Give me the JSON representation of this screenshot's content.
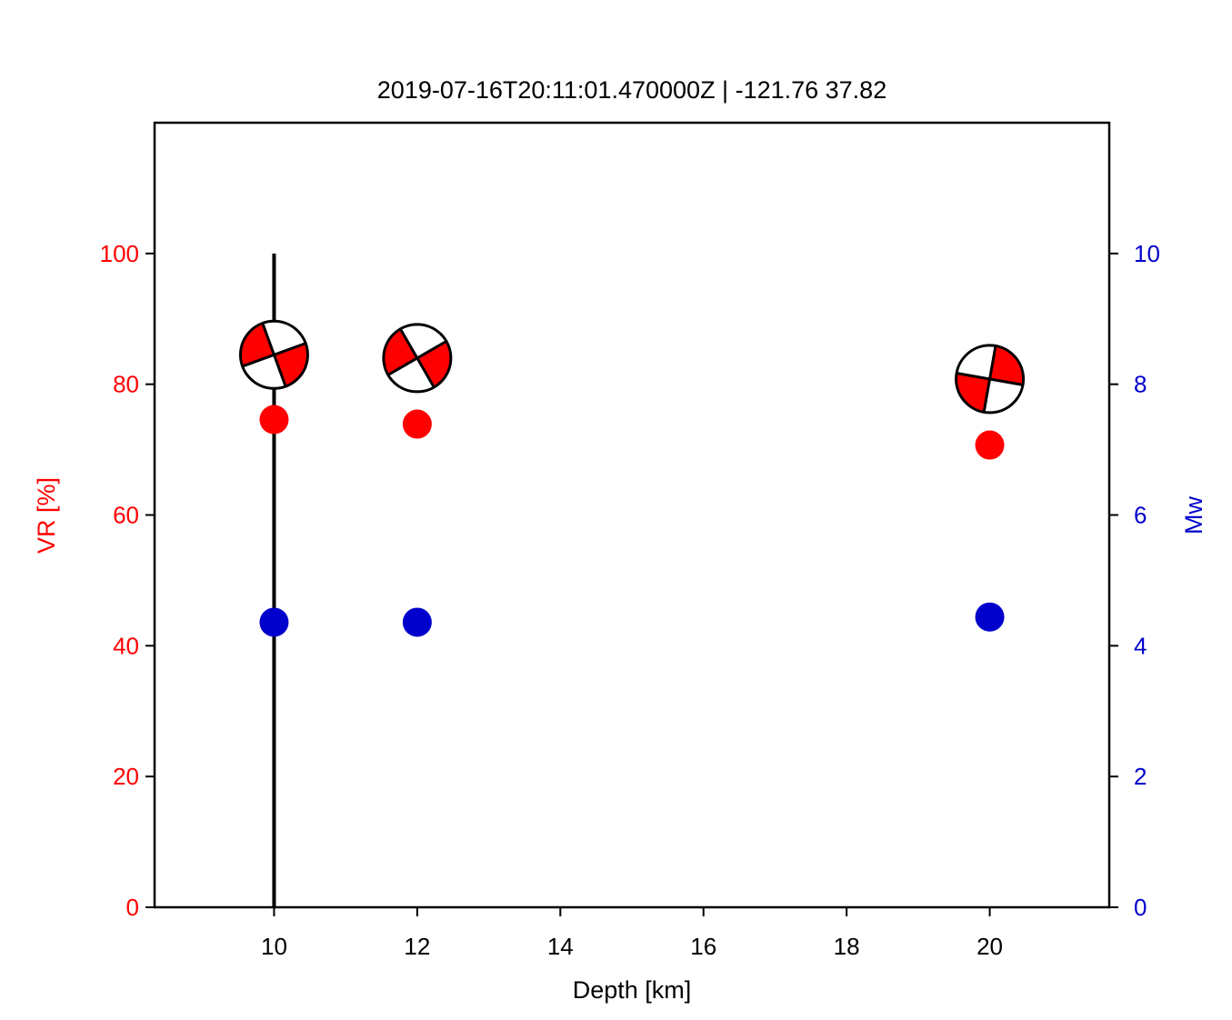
{
  "chart_data": {
    "type": "scatter",
    "title": "2019-07-16T20:11:01.470000Z | -121.76 37.82",
    "xlabel": "Depth [km]",
    "ylabel_left": "VR [%]",
    "ylabel_right": "Mw",
    "xlim": [
      8.33,
      21.67
    ],
    "ylim_left": [
      0,
      120
    ],
    "ylim_right": [
      0,
      12
    ],
    "x_ticks": [
      10,
      12,
      14,
      16,
      18,
      20
    ],
    "y_ticks_left": [
      0,
      20,
      40,
      60,
      80,
      100
    ],
    "y_ticks_right": [
      0,
      2,
      4,
      6,
      8,
      10
    ],
    "best_depth_line": {
      "x": 10,
      "y_from": 0,
      "y_to": 100
    },
    "series": [
      {
        "name": "VR",
        "axis": "left",
        "color": "#ff0000",
        "x": [
          10,
          12,
          20
        ],
        "values": [
          74.6,
          73.9,
          70.7
        ]
      },
      {
        "name": "Mw",
        "axis": "right",
        "color": "#0000cc",
        "x": [
          10,
          12,
          20
        ],
        "values": [
          4.36,
          4.36,
          4.44
        ]
      }
    ],
    "focal_mechanisms": [
      {
        "x": 10,
        "vr": 84.5,
        "rotation": -20
      },
      {
        "x": 12,
        "vr": 84.0,
        "rotation": -30
      },
      {
        "x": 20,
        "vr": 80.8,
        "rotation": -80
      }
    ],
    "grid": false,
    "colors": {
      "left_axis": "#ff0000",
      "right_axis": "#0000cc",
      "beachball_fill": "#ff0000"
    }
  }
}
